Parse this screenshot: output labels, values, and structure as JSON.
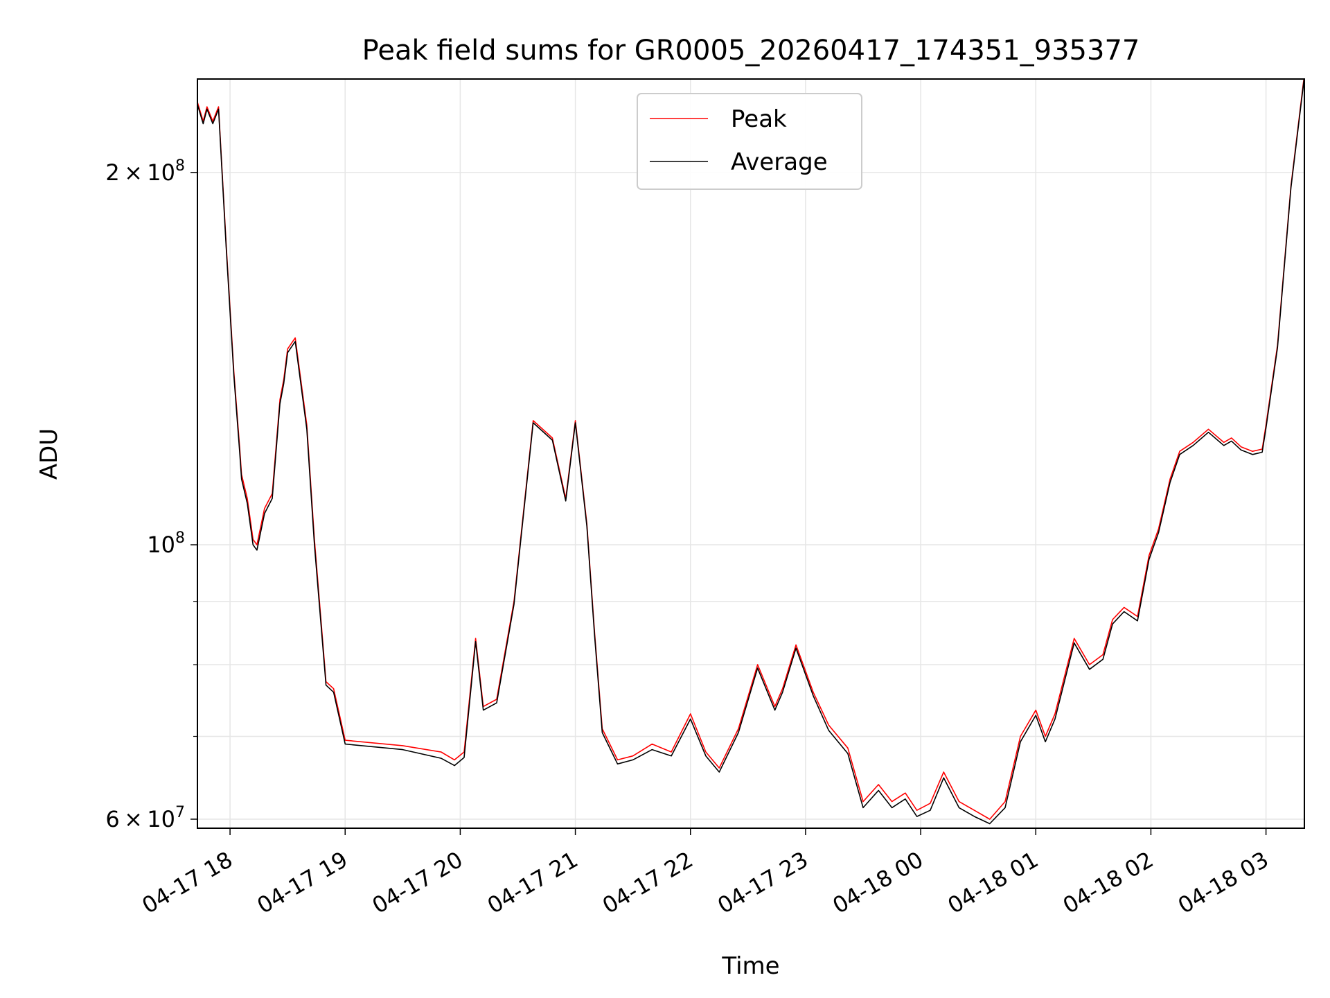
{
  "chart_data": {
    "type": "line",
    "title": "Peak field sums for GR0005_20260417_174351_935377",
    "xlabel": "Time",
    "ylabel": "ADU",
    "yscale": "log",
    "ylim": [
      59000000,
      238000000
    ],
    "xlim": [
      "2026-04-17T17:43",
      "2026-04-18T03:20"
    ],
    "grid": true,
    "legend_position": "top-center",
    "x_ticks": [
      "04-17 18",
      "04-17 19",
      "04-17 20",
      "04-17 21",
      "04-17 22",
      "04-17 23",
      "04-18 00",
      "04-18 01",
      "04-18 02",
      "04-18 03"
    ],
    "x_tick_times": [
      "2026-04-17T18:00",
      "2026-04-17T19:00",
      "2026-04-17T20:00",
      "2026-04-17T21:00",
      "2026-04-17T22:00",
      "2026-04-17T23:00",
      "2026-04-18T00:00",
      "2026-04-18T01:00",
      "2026-04-18T02:00",
      "2026-04-18T03:00"
    ],
    "y_ticks": [
      {
        "value": 60000000,
        "coef": "6",
        "exp": "7"
      },
      {
        "value": 100000000,
        "coef": "",
        "exp": "8"
      },
      {
        "value": 200000000,
        "coef": "2",
        "exp": "8"
      }
    ],
    "y_minor_ticks": [
      70000000,
      80000000,
      90000000
    ],
    "x": [
      "2026-04-17T17:43",
      "2026-04-17T17:46",
      "2026-04-17T17:48",
      "2026-04-17T17:51",
      "2026-04-17T17:54",
      "2026-04-17T17:58",
      "2026-04-17T18:02",
      "2026-04-17T18:05",
      "2026-04-17T18:06",
      "2026-04-17T18:09",
      "2026-04-17T18:12",
      "2026-04-17T18:14",
      "2026-04-17T18:18",
      "2026-04-17T18:22",
      "2026-04-17T18:26",
      "2026-04-17T18:28",
      "2026-04-17T18:30",
      "2026-04-17T18:34",
      "2026-04-17T18:40",
      "2026-04-17T18:44",
      "2026-04-17T18:50",
      "2026-04-17T18:54",
      "2026-04-17T19:00",
      "2026-04-17T19:30",
      "2026-04-17T19:50",
      "2026-04-17T19:57",
      "2026-04-17T20:02",
      "2026-04-17T20:08",
      "2026-04-17T20:12",
      "2026-04-17T20:19",
      "2026-04-17T20:28",
      "2026-04-17T20:38",
      "2026-04-17T20:48",
      "2026-04-17T20:55",
      "2026-04-17T21:00",
      "2026-04-17T21:06",
      "2026-04-17T21:10",
      "2026-04-17T21:14",
      "2026-04-17T21:22",
      "2026-04-17T21:30",
      "2026-04-17T21:40",
      "2026-04-17T21:50",
      "2026-04-17T22:00",
      "2026-04-17T22:08",
      "2026-04-17T22:15",
      "2026-04-17T22:25",
      "2026-04-17T22:35",
      "2026-04-17T22:44",
      "2026-04-17T22:48",
      "2026-04-17T22:55",
      "2026-04-17T23:04",
      "2026-04-17T23:12",
      "2026-04-17T23:22",
      "2026-04-17T23:30",
      "2026-04-17T23:38",
      "2026-04-17T23:45",
      "2026-04-17T23:52",
      "2026-04-17T23:58",
      "2026-04-18T00:05",
      "2026-04-18T00:12",
      "2026-04-18T00:20",
      "2026-04-18T00:28",
      "2026-04-18T00:36",
      "2026-04-18T00:44",
      "2026-04-18T00:52",
      "2026-04-18T01:00",
      "2026-04-18T01:05",
      "2026-04-18T01:10",
      "2026-04-18T01:20",
      "2026-04-18T01:28",
      "2026-04-18T01:35",
      "2026-04-18T01:40",
      "2026-04-18T01:46",
      "2026-04-18T01:53",
      "2026-04-18T01:59",
      "2026-04-18T02:04",
      "2026-04-18T02:10",
      "2026-04-18T02:15",
      "2026-04-18T02:22",
      "2026-04-18T02:30",
      "2026-04-18T02:38",
      "2026-04-18T02:42",
      "2026-04-18T02:47",
      "2026-04-18T02:53",
      "2026-04-18T02:58",
      "2026-04-18T03:00",
      "2026-04-18T03:06",
      "2026-04-18T03:13",
      "2026-04-18T03:20"
    ],
    "series": [
      {
        "name": "Peak",
        "color": "#ff0000",
        "values": [
          228000000,
          220000000,
          226000000,
          220000000,
          226000000,
          175000000,
          138000000,
          120000000,
          114000000,
          109000000,
          101000000,
          100000000,
          107000000,
          110000000,
          131000000,
          136000000,
          144000000,
          147000000,
          125000000,
          101000000,
          77500000,
          76500000,
          69500000,
          68800000,
          68000000,
          67000000,
          68000000,
          84000000,
          74000000,
          75000000,
          90000000,
          126000000,
          122000000,
          109000000,
          126000000,
          104000000,
          85000000,
          71000000,
          67000000,
          67500000,
          69000000,
          68000000,
          73000000,
          68000000,
          66000000,
          71000000,
          80000000,
          74000000,
          76500000,
          83000000,
          76000000,
          71500000,
          68500000,
          62000000,
          64000000,
          62000000,
          63000000,
          61000000,
          61800000,
          65500000,
          62000000,
          61000000,
          60000000,
          62000000,
          70000000,
          73500000,
          70000000,
          73000000,
          84000000,
          80000000,
          81500000,
          87000000,
          89000000,
          87500000,
          98000000,
          103000000,
          113000000,
          119000000,
          121000000,
          124000000,
          121000000,
          122000000,
          120000000,
          119000000,
          119500000,
          125000000,
          145000000,
          195000000,
          240000000
        ]
      },
      {
        "name": "Average",
        "color": "#000000",
        "values": [
          227000000,
          219000000,
          225000000,
          219000000,
          225000000,
          174000000,
          137000000,
          119000000,
          113000000,
          108000000,
          100000000,
          99000000,
          106000000,
          109000000,
          130000000,
          135000000,
          143000000,
          146000000,
          124000000,
          100000000,
          77000000,
          76000000,
          69000000,
          68300000,
          67200000,
          66300000,
          67300000,
          83500000,
          73500000,
          74500000,
          89500000,
          125500000,
          121500000,
          108500000,
          125500000,
          103500000,
          84500000,
          70500000,
          66500000,
          67000000,
          68300000,
          67500000,
          72300000,
          67500000,
          65500000,
          70500000,
          79500000,
          73500000,
          76000000,
          82500000,
          75500000,
          70800000,
          67800000,
          61300000,
          63300000,
          61300000,
          62300000,
          60300000,
          61000000,
          64800000,
          61300000,
          60300000,
          59500000,
          61300000,
          69300000,
          72800000,
          69300000,
          72300000,
          83300000,
          79300000,
          80800000,
          86300000,
          88300000,
          86800000,
          97300000,
          102300000,
          112300000,
          118300000,
          120300000,
          123300000,
          120300000,
          121300000,
          119300000,
          118300000,
          118800000,
          124300000,
          144300000,
          194300000,
          239000000
        ]
      }
    ]
  }
}
